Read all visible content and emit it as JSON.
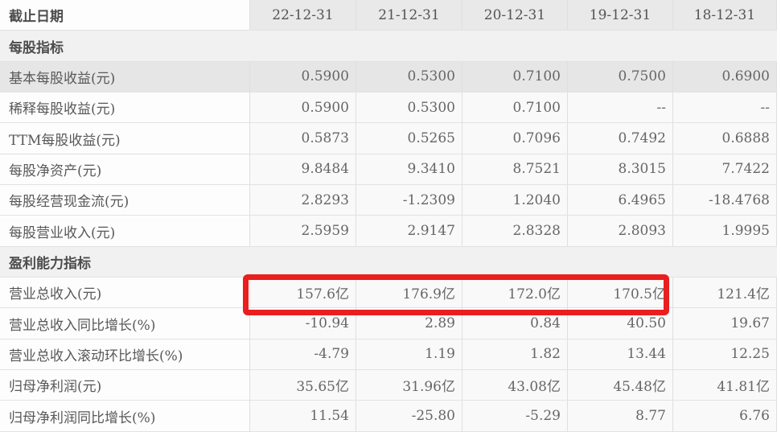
{
  "header": {
    "label": "截止日期",
    "dates": [
      "22-12-31",
      "21-12-31",
      "20-12-31",
      "19-12-31",
      "18-12-31"
    ]
  },
  "sections": [
    {
      "title": "每股指标",
      "rows": [
        {
          "label": "基本每股收益(元)",
          "values": [
            "0.5900",
            "0.5300",
            "0.7100",
            "0.7500",
            "0.6900"
          ],
          "state": "hover-highlighted"
        },
        {
          "label": "稀释每股收益(元)",
          "values": [
            "0.5900",
            "0.5300",
            "0.7100",
            "--",
            "--"
          ]
        },
        {
          "label": "TTM每股收益(元)",
          "values": [
            "0.5873",
            "0.5265",
            "0.7096",
            "0.7492",
            "0.6888"
          ]
        },
        {
          "label": "每股净资产(元)",
          "values": [
            "9.8484",
            "9.3410",
            "8.7521",
            "8.3015",
            "7.7422"
          ]
        },
        {
          "label": "每股经营现金流(元)",
          "values": [
            "2.8293",
            "-1.2309",
            "1.2040",
            "6.4965",
            "-18.4768"
          ]
        },
        {
          "label": "每股营业收入(元)",
          "values": [
            "2.5959",
            "2.9147",
            "2.8328",
            "2.8093",
            "1.9995"
          ]
        }
      ]
    },
    {
      "title": "盈利能力指标",
      "rows": [
        {
          "label": "营业总收入(元)",
          "values": [
            "157.6亿",
            "176.9亿",
            "172.0亿",
            "170.5亿",
            "121.4亿"
          ],
          "annotation": "red-box over first four value columns"
        },
        {
          "label": "营业总收入同比增长(%)",
          "values": [
            "-10.94",
            "2.89",
            "0.84",
            "40.50",
            "19.67"
          ]
        },
        {
          "label": "营业总收入滚动环比增长(%)",
          "values": [
            "-4.79",
            "1.19",
            "1.82",
            "13.44",
            "12.25"
          ]
        },
        {
          "label": "归母净利润(元)",
          "values": [
            "35.65亿",
            "31.96亿",
            "43.08亿",
            "45.48亿",
            "41.81亿"
          ]
        },
        {
          "label": "归母净利润同比增长(%)",
          "values": [
            "11.54",
            "-25.80",
            "-5.29",
            "8.77",
            "6.76"
          ]
        }
      ]
    }
  ],
  "annotation": {
    "shape": "rectangle-outline",
    "color": "#ea1e1e",
    "row": "营业总收入(元)",
    "covers_columns": [
      "22-12-31",
      "21-12-31",
      "20-12-31",
      "19-12-31"
    ]
  }
}
